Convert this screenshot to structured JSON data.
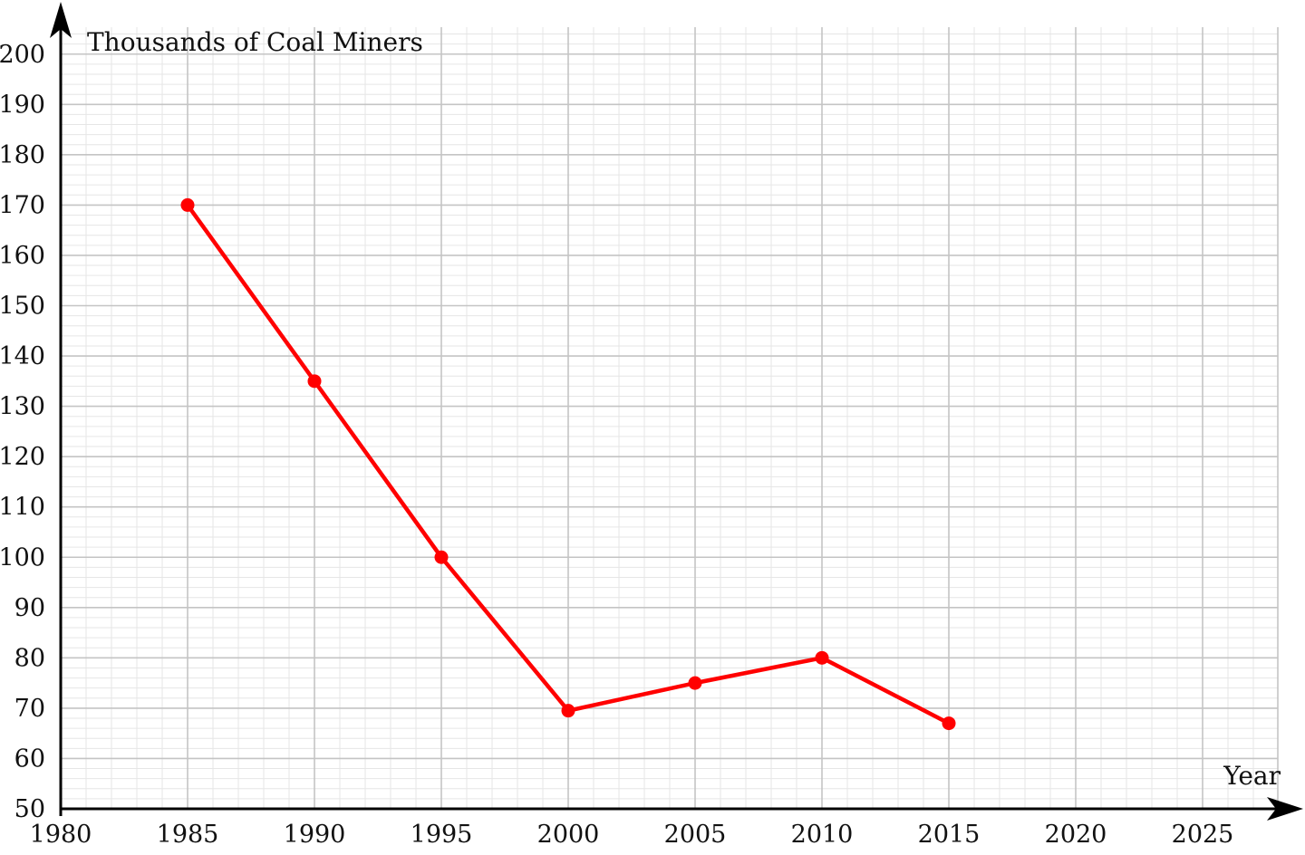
{
  "chart_data": {
    "type": "line",
    "title": "",
    "ylabel": "Thousands of Coal Miners",
    "xlabel": "Year",
    "xlim": [
      1980,
      2028
    ],
    "ylim": [
      50,
      202
    ],
    "x_ticks": [
      1980,
      1985,
      1990,
      1995,
      2000,
      2005,
      2010,
      2015,
      2020,
      2025
    ],
    "y_ticks": [
      50,
      60,
      70,
      80,
      90,
      100,
      110,
      120,
      130,
      140,
      150,
      160,
      170,
      180,
      190,
      200
    ],
    "grid": true,
    "series": [
      {
        "name": "Coal Miners",
        "color": "#ff0000",
        "x": [
          1985,
          1990,
          1995,
          2000,
          2005,
          2010,
          2015
        ],
        "values": [
          170,
          135,
          100,
          69.5,
          75,
          80,
          67
        ]
      }
    ]
  }
}
